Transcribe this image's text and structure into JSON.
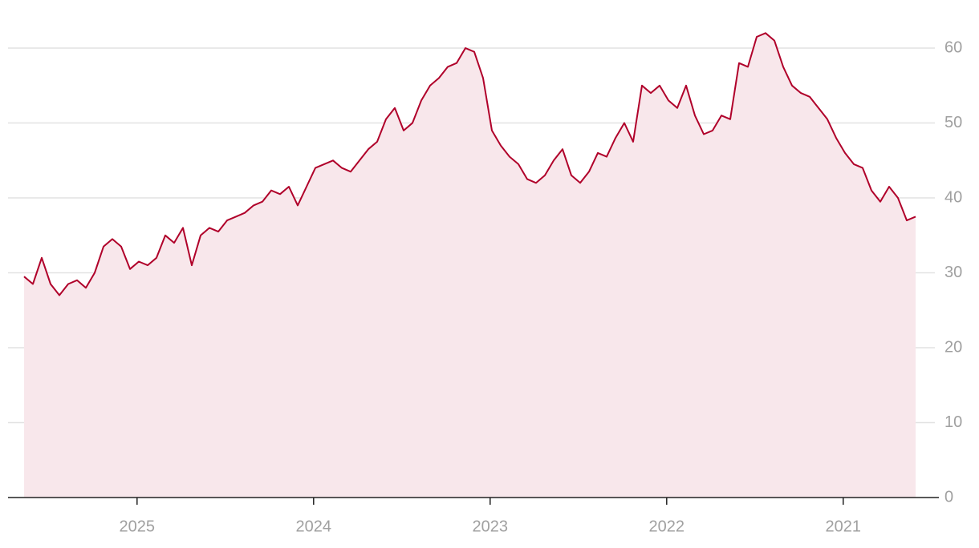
{
  "chart_data": {
    "type": "area",
    "x": [
      2025.64,
      2025.59,
      2025.54,
      2025.49,
      2025.44,
      2025.39,
      2025.34,
      2025.29,
      2025.24,
      2025.19,
      2025.14,
      2025.09,
      2025.04,
      2024.99,
      2024.94,
      2024.89,
      2024.84,
      2024.79,
      2024.74,
      2024.69,
      2024.64,
      2024.59,
      2024.54,
      2024.49,
      2024.44,
      2024.39,
      2024.34,
      2024.29,
      2024.24,
      2024.19,
      2024.14,
      2024.09,
      2024.04,
      2023.99,
      2023.94,
      2023.89,
      2023.84,
      2023.79,
      2023.74,
      2023.69,
      2023.64,
      2023.59,
      2023.54,
      2023.49,
      2023.44,
      2023.39,
      2023.34,
      2023.29,
      2023.24,
      2023.19,
      2023.14,
      2023.09,
      2023.04,
      2022.99,
      2022.94,
      2022.89,
      2022.84,
      2022.79,
      2022.74,
      2022.69,
      2022.64,
      2022.59,
      2022.54,
      2022.49,
      2022.44,
      2022.39,
      2022.34,
      2022.29,
      2022.24,
      2022.19,
      2022.14,
      2022.09,
      2022.04,
      2021.99,
      2021.94,
      2021.89,
      2021.84,
      2021.79,
      2021.74,
      2021.69,
      2021.64,
      2021.59,
      2021.54,
      2021.49,
      2021.44,
      2021.39,
      2021.34,
      2021.29,
      2021.24,
      2021.19,
      2021.14,
      2021.09,
      2021.04,
      2020.99,
      2020.94,
      2020.89,
      2020.84,
      2020.79,
      2020.74,
      2020.69,
      2020.64,
      2020.59
    ],
    "values": [
      29.5,
      28.5,
      32,
      28.5,
      27,
      28.5,
      29,
      28,
      30,
      33.5,
      34.5,
      33.5,
      30.5,
      31.5,
      31,
      32,
      35,
      34,
      36,
      31,
      35,
      36,
      35.5,
      37,
      37.5,
      38,
      39,
      39.5,
      41,
      40.5,
      41.5,
      39,
      41.5,
      44,
      44.5,
      45,
      44,
      43.5,
      45,
      46.5,
      47.5,
      50.5,
      52,
      49,
      50,
      53,
      55,
      56,
      57.5,
      58,
      60,
      59.5,
      56,
      49,
      47,
      45.5,
      44.5,
      42.5,
      42,
      43,
      45,
      46.5,
      43,
      42,
      43.5,
      46,
      45.5,
      48,
      50,
      47.5,
      55,
      54,
      55,
      53,
      52,
      55,
      51,
      48.5,
      49,
      51,
      50.5,
      58,
      57.5,
      61.5,
      62,
      61,
      57.5,
      55,
      54,
      53.5,
      52,
      50.5,
      48,
      46,
      44.5,
      44,
      41,
      39.5,
      41.5,
      40,
      37,
      37.5
    ],
    "color": "#b0002a",
    "fill": "#f8e7eb",
    "xlim": [
      2025.64,
      2020.59
    ],
    "xticks": [
      2025,
      2024,
      2023,
      2022,
      2021
    ],
    "ylim": [
      0,
      65
    ],
    "yticks": [
      0,
      10,
      20,
      30,
      40,
      50,
      60
    ],
    "grid": true
  }
}
